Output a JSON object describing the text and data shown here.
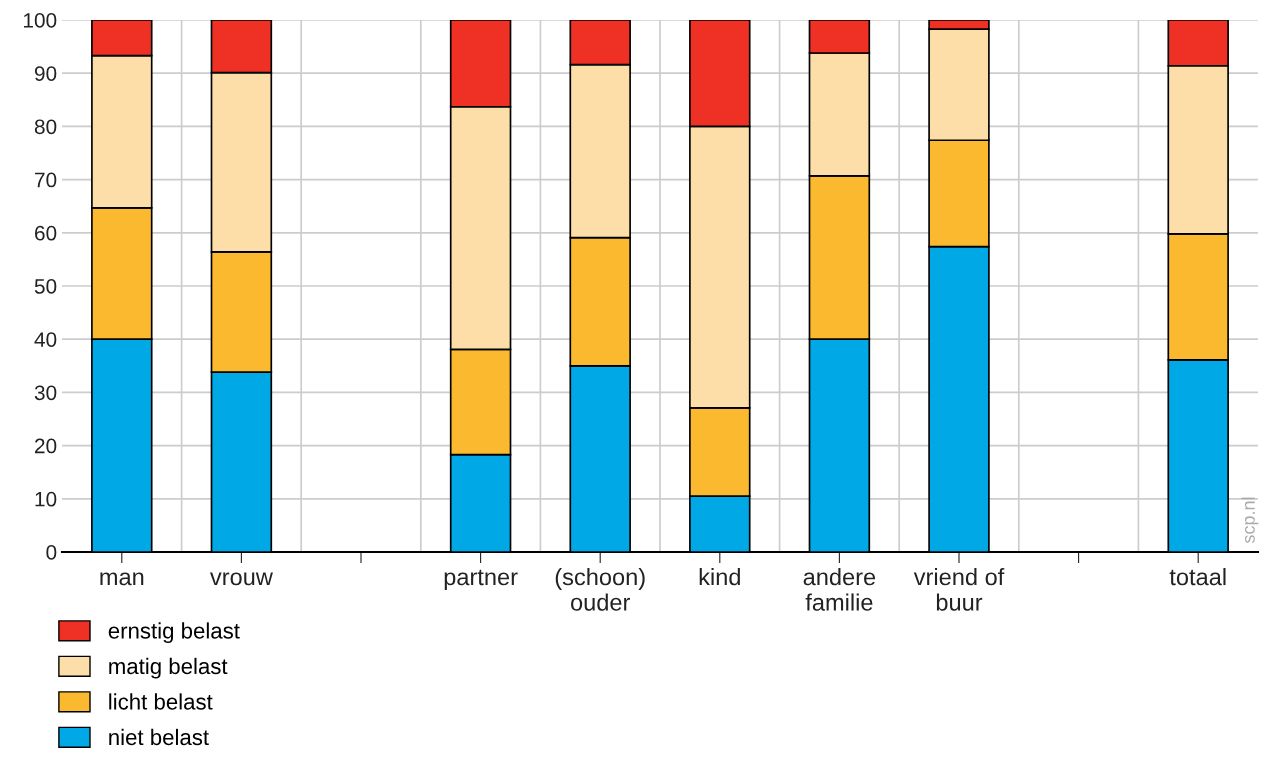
{
  "chart_data": {
    "type": "bar",
    "stacked": true,
    "categories": [
      "man",
      "vrouw",
      null,
      "partner",
      "(schoon)\nouder",
      "kind",
      "andere\nfamilie",
      "vriend of\nbuur",
      null,
      "totaal"
    ],
    "series": [
      {
        "name": "niet belast",
        "color": "#00a9e6",
        "values": [
          40.0,
          33.8,
          null,
          18.3,
          35.0,
          10.5,
          40.0,
          57.4,
          null,
          36.1
        ]
      },
      {
        "name": "licht belast",
        "color": "#fbb92f",
        "values": [
          24.7,
          22.6,
          null,
          19.8,
          24.1,
          16.6,
          30.7,
          20.0,
          null,
          23.7
        ]
      },
      {
        "name": "matig belast",
        "color": "#fddea8",
        "values": [
          28.6,
          33.7,
          null,
          45.6,
          32.5,
          52.9,
          23.1,
          20.9,
          null,
          31.6
        ]
      },
      {
        "name": "ernstig belast",
        "color": "#ee3124",
        "values": [
          6.7,
          9.9,
          null,
          16.3,
          8.4,
          20.0,
          6.2,
          1.7,
          null,
          8.6
        ]
      }
    ],
    "ylim": [
      0,
      100
    ],
    "yticks": [
      0,
      10,
      20,
      30,
      40,
      50,
      60,
      70,
      80,
      90,
      100
    ],
    "grid": true,
    "legend": "bottom left",
    "annotations": [
      "scp.nl"
    ]
  }
}
